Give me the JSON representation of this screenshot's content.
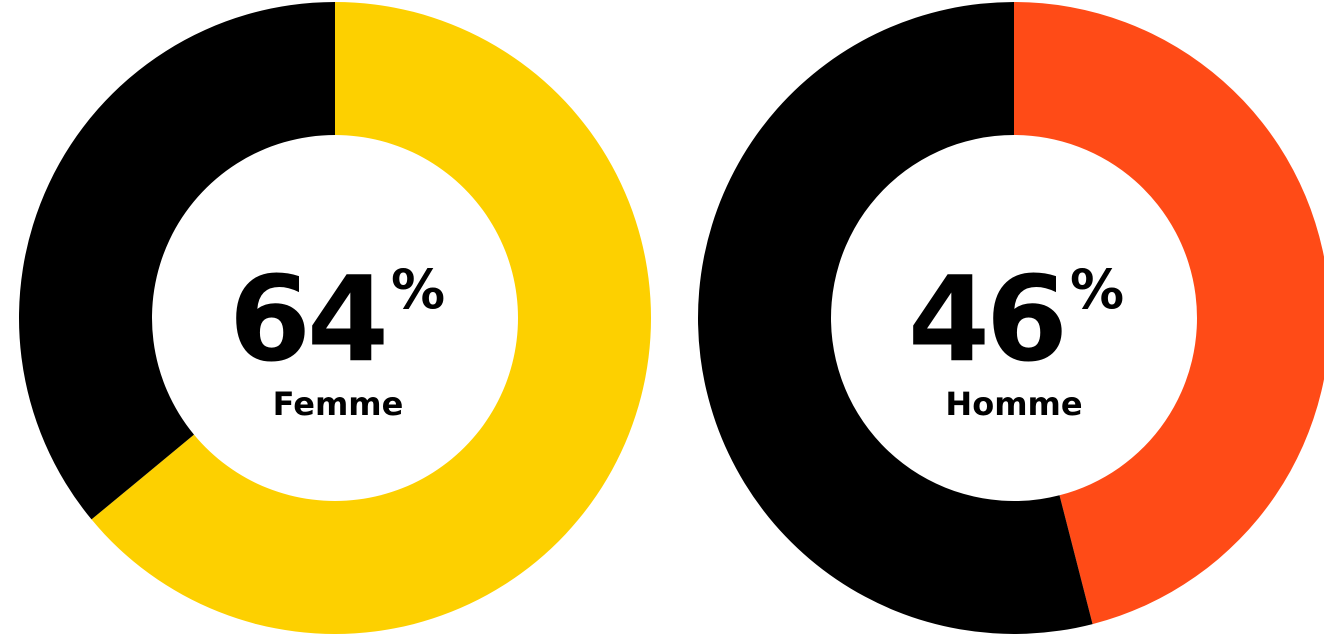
{
  "chart_data": [
    {
      "type": "pie",
      "style": "donut",
      "value_text": "64",
      "unit": "%",
      "label": "Femme",
      "slices": [
        {
          "label": "Femme",
          "value": 64,
          "color": "#FDD000"
        },
        {
          "label": "",
          "value": 36,
          "color": "#000000"
        }
      ]
    },
    {
      "type": "pie",
      "style": "donut",
      "value_text": "46",
      "unit": "%",
      "label": "Homme",
      "slices": [
        {
          "label": "Homme",
          "value": 46,
          "color": "#FF4B17"
        },
        {
          "label": "",
          "value": 54,
          "color": "#000000"
        }
      ]
    }
  ]
}
